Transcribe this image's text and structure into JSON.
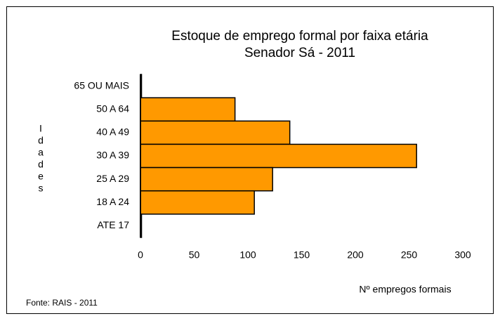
{
  "chart_data": {
    "type": "barh",
    "title": "Estoque de emprego formal por faixa etária",
    "subtitle": "Senador Sá - 2011",
    "categories": [
      "65 OU MAIS",
      "50 A 64",
      "40 A 49",
      "30 A 39",
      "25 A 29",
      "18 A 24",
      "ATE 17"
    ],
    "values": [
      1,
      88,
      139,
      257,
      123,
      106,
      1
    ],
    "color": "#ff9900",
    "xlim": [
      0,
      300
    ],
    "xticks": [
      0,
      50,
      100,
      150,
      200,
      250,
      300
    ],
    "xlabel": "Nº empregos formais",
    "ylabel": "Idades",
    "source": "Fonte: RAIS - 2011"
  }
}
